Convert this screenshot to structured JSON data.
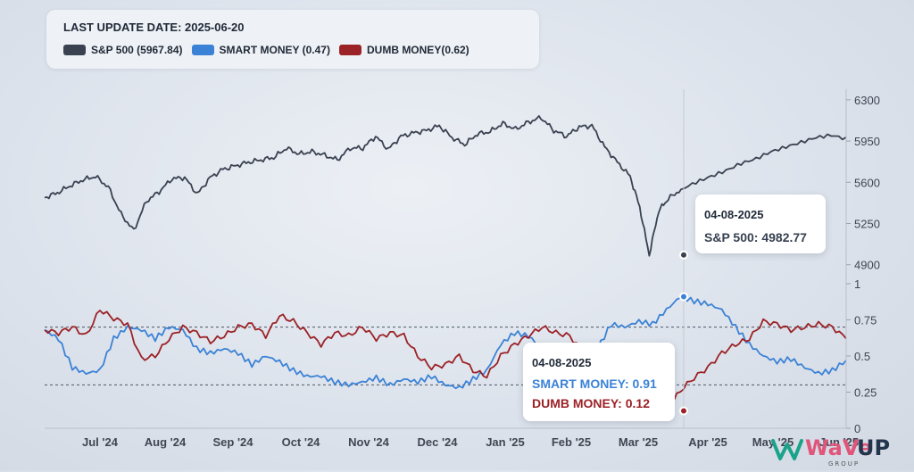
{
  "legend": {
    "update_label": "LAST UPDATE DATE: 2025-06-20",
    "items": [
      {
        "label": "S&P 500 (5967.84)",
        "color": "#3a4150"
      },
      {
        "label": "SMART MONEY (0.47)",
        "color": "#3b82d6"
      },
      {
        "label": "DUMB MONEY(0.62)",
        "color": "#9b2226"
      }
    ]
  },
  "tooltips": {
    "sp": {
      "date": "04-08-2025",
      "text": "S&P 500: 4982.77"
    },
    "sentiment": {
      "date": "04-08-2025",
      "smart": "SMART MONEY: 0.91",
      "dumb": "DUMB MONEY: 0.12"
    }
  },
  "logo": {
    "text_a": "WaVe",
    "text_b": "UP",
    "sub": "GROUP"
  },
  "chart_data": {
    "type": "line",
    "x_range": [
      "2025-06-20 minus ~1 year",
      "2025-06-20"
    ],
    "x_tick_labels": [
      "Jul '24",
      "Aug '24",
      "Sep '24",
      "Oct '24",
      "Nov '24",
      "Dec '24",
      "Jan '25",
      "Feb '25",
      "Mar '25",
      "Apr '25",
      "May '25",
      "Jun '25"
    ],
    "x_tick_positions": [
      0.068,
      0.179,
      0.281,
      0.383,
      0.487,
      0.589,
      0.687,
      0.792,
      0.886,
      0.989,
      1.093,
      1.193
    ],
    "upper_axis": {
      "ticks": [
        6300,
        5950,
        5600,
        5250,
        4900
      ],
      "ylim": [
        4860,
        6390
      ]
    },
    "lower_axis": {
      "ticks": [
        1,
        0.75,
        0.5,
        0.25,
        0
      ],
      "tick_labels": [
        "1",
        "0.75",
        "0.5",
        "0.25",
        "0"
      ],
      "ylim": [
        0,
        1.08
      ]
    },
    "reference_lines": [
      0.7,
      0.3
    ],
    "highlight": {
      "date": "2025-04-08",
      "sp500": 4982.77,
      "smart_money": 0.91,
      "dumb_money": 0.12
    },
    "series": [
      {
        "name": "S&P 500",
        "color": "#3a4150",
        "axis": "upper",
        "x": [
          0.0,
          0.02,
          0.04,
          0.06,
          0.08,
          0.1,
          0.12,
          0.14,
          0.16,
          0.18,
          0.2,
          0.22,
          0.24,
          0.26,
          0.28,
          0.3,
          0.32,
          0.34,
          0.36,
          0.38,
          0.4,
          0.42,
          0.44,
          0.46,
          0.48,
          0.5,
          0.52,
          0.54,
          0.56,
          0.58,
          0.6,
          0.62,
          0.64,
          0.66,
          0.68,
          0.7,
          0.72,
          0.74,
          0.76,
          0.78,
          0.8,
          0.82,
          0.84,
          0.86,
          0.88,
          0.9,
          0.92,
          0.935,
          0.95,
          0.965,
          0.98,
          1.0
        ],
        "values": [
          5470,
          5510,
          5570,
          5620,
          5650,
          5560,
          5330,
          5190,
          5440,
          5520,
          5630,
          5640,
          5500,
          5640,
          5710,
          5740,
          5770,
          5790,
          5810,
          5890,
          5840,
          5860,
          5830,
          5790,
          5890,
          5890,
          5990,
          5880,
          5990,
          6020,
          6040,
          6080,
          5980,
          5920,
          6010,
          6030,
          6100,
          6050,
          6110,
          6150,
          6040,
          5990,
          6070,
          6080,
          5900,
          5770,
          5650,
          5390,
          4982,
          5360,
          5460,
          5540
        ],
        "note": "x is fraction of span Jul '24 start to ~Apr 20 '25 (first half, continued below)"
      },
      {
        "name": "S&P 500 (cont)",
        "color": "#3a4150",
        "axis": "upper",
        "x": [
          1.0,
          1.02,
          1.04,
          1.06,
          1.08,
          1.1,
          1.12,
          1.14,
          1.16,
          1.18,
          1.2,
          1.22
        ],
        "values": [
          5540,
          5600,
          5650,
          5700,
          5760,
          5800,
          5860,
          5900,
          5940,
          5980,
          6000,
          5968
        ]
      }
    ],
    "sentiment_series": [
      {
        "name": "SMART MONEY",
        "color": "#3b82d6",
        "values": [
          0.68,
          0.62,
          0.42,
          0.38,
          0.4,
          0.62,
          0.7,
          0.68,
          0.62,
          0.7,
          0.68,
          0.55,
          0.52,
          0.55,
          0.52,
          0.44,
          0.5,
          0.46,
          0.4,
          0.36,
          0.36,
          0.32,
          0.3,
          0.32,
          0.35,
          0.3,
          0.34,
          0.32,
          0.36,
          0.3,
          0.28,
          0.34,
          0.4,
          0.58,
          0.66,
          0.64,
          0.55,
          0.3,
          0.28,
          0.32,
          0.55,
          0.72,
          0.7,
          0.74,
          0.72,
          0.82,
          0.91,
          0.88,
          0.86,
          0.82,
          0.7,
          0.58,
          0.5,
          0.46,
          0.48,
          0.42,
          0.38,
          0.4,
          0.47
        ]
      },
      {
        "name": "DUMB MONEY",
        "color": "#9b2226",
        "values": [
          0.68,
          0.66,
          0.7,
          0.64,
          0.82,
          0.76,
          0.72,
          0.48,
          0.5,
          0.62,
          0.7,
          0.66,
          0.6,
          0.64,
          0.7,
          0.72,
          0.64,
          0.78,
          0.74,
          0.66,
          0.58,
          0.66,
          0.64,
          0.7,
          0.62,
          0.66,
          0.64,
          0.5,
          0.42,
          0.44,
          0.5,
          0.4,
          0.36,
          0.5,
          0.58,
          0.64,
          0.7,
          0.66,
          0.64,
          0.52,
          0.42,
          0.46,
          0.4,
          0.3,
          0.2,
          0.12,
          0.26,
          0.35,
          0.42,
          0.52,
          0.58,
          0.62,
          0.74,
          0.72,
          0.68,
          0.7,
          0.72,
          0.7,
          0.62
        ]
      }
    ]
  }
}
